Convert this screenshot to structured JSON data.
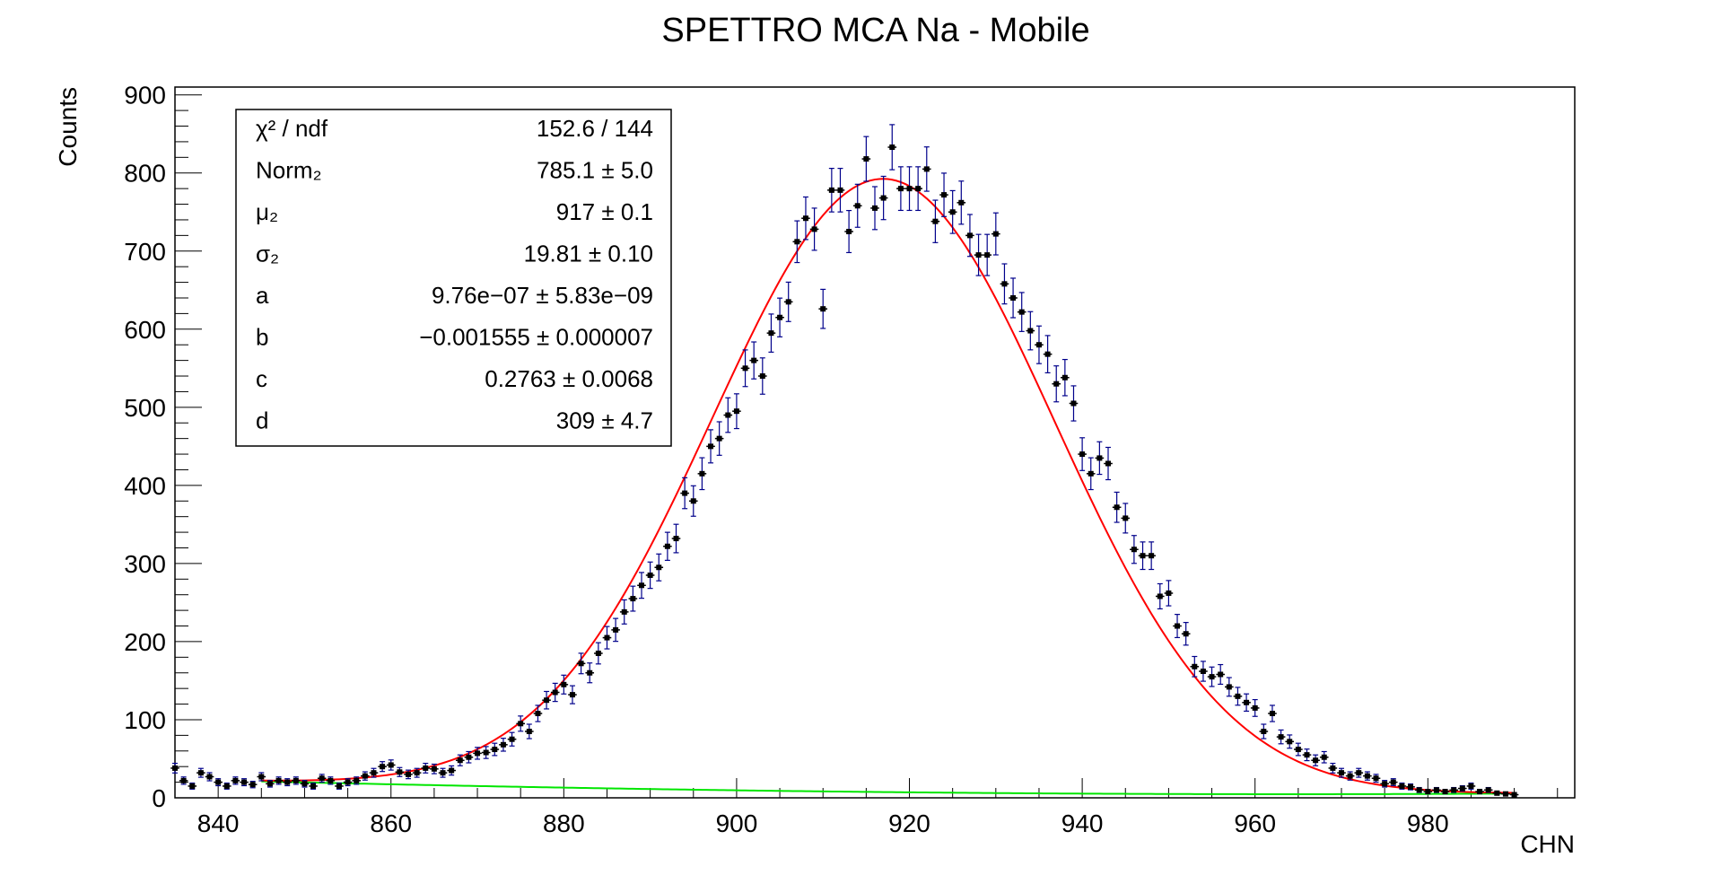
{
  "chart_data": {
    "type": "scatter",
    "title": "SPETTRO MCA Na - Mobile",
    "xlabel": "CHN",
    "ylabel": "Counts",
    "xlim": [
      835,
      997
    ],
    "ylim": [
      0,
      910
    ],
    "x_ticks": [
      840,
      860,
      880,
      900,
      920,
      940,
      960,
      980
    ],
    "y_ticks": [
      0,
      100,
      200,
      300,
      400,
      500,
      600,
      700,
      800,
      900
    ],
    "grid": false,
    "colors": {
      "data": "#000000",
      "errorbar": "#00008b",
      "fit": "#ff0000",
      "background": "#00e600"
    },
    "stats_box": {
      "position": "top-left",
      "rows": [
        {
          "label": "χ² / ndf",
          "value": "152.6 / 144"
        },
        {
          "label": "Norm₂",
          "value": "785.1 ± 5.0"
        },
        {
          "label": "μ₂",
          "value": "917 ± 0.1"
        },
        {
          "label": "σ₂",
          "value": "19.81 ± 0.10"
        },
        {
          "label": "a",
          "value": "9.76e−07 ± 5.83e−09"
        },
        {
          "label": "b",
          "value": "−0.001555 ± 0.000007"
        },
        {
          "label": "c",
          "value": "0.2763 ± 0.0068"
        },
        {
          "label": "d",
          "value": "309 ± 4.7"
        }
      ]
    },
    "series": [
      {
        "type": "points-with-errors",
        "x": [
          835,
          836,
          837,
          838,
          839,
          840,
          841,
          842,
          843,
          844,
          845,
          846,
          847,
          848,
          849,
          850,
          851,
          852,
          853,
          854,
          855,
          856,
          857,
          858,
          859,
          860,
          861,
          862,
          863,
          864,
          865,
          866,
          867,
          868,
          869,
          870,
          871,
          872,
          873,
          874,
          875,
          876,
          877,
          878,
          879,
          880,
          881,
          882,
          883,
          884,
          885,
          886,
          887,
          888,
          889,
          890,
          891,
          892,
          893,
          894,
          895,
          896,
          897,
          898,
          899,
          900,
          901,
          902,
          903,
          904,
          905,
          906,
          907,
          908,
          909,
          910,
          911,
          912,
          913,
          914,
          915,
          916,
          917,
          918,
          919,
          920,
          921,
          922,
          923,
          924,
          925,
          926,
          927,
          928,
          929,
          930,
          931,
          932,
          933,
          934,
          935,
          936,
          937,
          938,
          939,
          940,
          941,
          942,
          943,
          944,
          945,
          946,
          947,
          948,
          949,
          950,
          951,
          952,
          953,
          954,
          955,
          956,
          957,
          958,
          959,
          960,
          961,
          962,
          963,
          964,
          965,
          966,
          967,
          968,
          969,
          970,
          971,
          972,
          973,
          974,
          975,
          976,
          977,
          978,
          979,
          980,
          981,
          982,
          983,
          984,
          985,
          986,
          987,
          988,
          989,
          990
        ],
        "y": [
          38,
          22,
          15,
          32,
          27,
          20,
          15,
          22,
          20,
          17,
          27,
          18,
          22,
          20,
          22,
          18,
          15,
          25,
          22,
          15,
          20,
          22,
          28,
          32,
          40,
          42,
          33,
          30,
          32,
          38,
          37,
          32,
          35,
          48,
          52,
          57,
          58,
          62,
          68,
          75,
          95,
          85,
          108,
          125,
          135,
          145,
          132,
          172,
          160,
          185,
          205,
          215,
          238,
          255,
          272,
          285,
          295,
          322,
          332,
          390,
          380,
          415,
          450,
          460,
          490,
          495,
          550,
          560,
          540,
          595,
          615,
          635,
          712,
          742,
          728,
          626,
          778,
          778,
          725,
          758,
          818,
          755,
          768,
          833,
          780,
          780,
          780,
          805,
          738,
          772,
          750,
          762,
          720,
          695,
          695,
          722,
          658,
          640,
          622,
          598,
          580,
          568,
          530,
          538,
          505,
          440,
          415,
          435,
          428,
          372,
          358,
          318,
          310,
          310,
          258,
          262,
          220,
          210,
          168,
          162,
          155,
          158,
          142,
          130,
          122,
          115,
          85,
          108,
          78,
          72,
          62,
          55,
          48,
          52,
          38,
          32,
          28,
          32,
          28,
          25,
          18,
          20,
          15,
          14,
          10,
          8,
          10,
          8,
          10,
          12,
          15,
          8,
          10,
          6,
          5,
          4
        ],
        "err_x": 0.5,
        "err_y": "sqrt(N)"
      },
      {
        "type": "fit-curve",
        "model": "gaussian + polynomial",
        "x_range": [
          845,
          990
        ],
        "parameters": {
          "norm": 785.1,
          "mu": 917,
          "sigma": 19.81,
          "a": 9.76e-07,
          "b": -0.001555,
          "c": 0.2763,
          "d": 309
        }
      },
      {
        "type": "background-curve",
        "model": "polynomial",
        "x_range": [
          845,
          990
        ]
      }
    ]
  }
}
